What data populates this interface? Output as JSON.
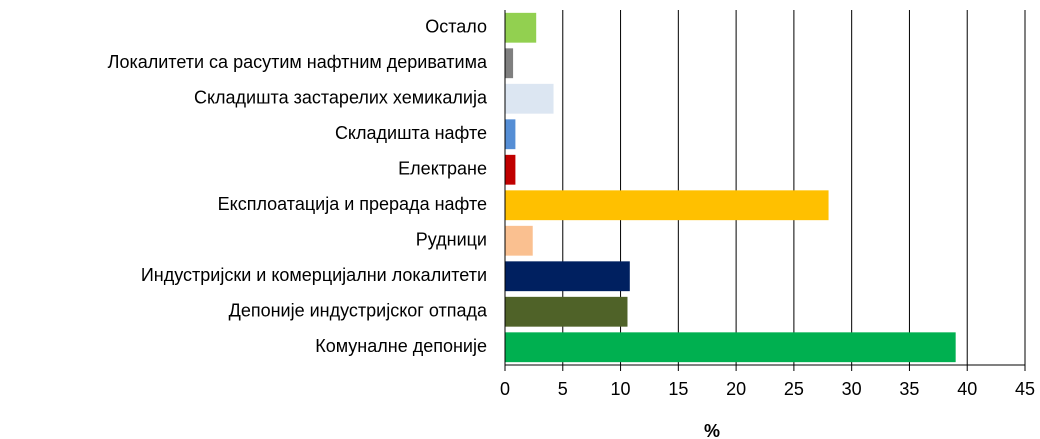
{
  "chart_data": {
    "type": "bar",
    "orientation": "horizontal",
    "xlabel": "%",
    "categories": [
      "Остало",
      "Локалитети са расутим нафтним дериватима",
      "Складишта застарелих хемикалија",
      "Складишта нафте",
      "Електране",
      "Експлоатација и прерада нафте",
      "Рудници",
      "Индустријски и комерцијални локалитети",
      "Депоније индустријског отпада",
      "Комуналне депоније"
    ],
    "values": [
      2.7,
      0.7,
      4.2,
      0.9,
      0.9,
      28,
      2.4,
      10.8,
      10.6,
      39
    ],
    "colors": [
      "#92d050",
      "#7f7f7f",
      "#dce6f2",
      "#558ed5",
      "#c00000",
      "#ffc000",
      "#fac090",
      "#002060",
      "#4f6228",
      "#00b050"
    ],
    "xlim": [
      0,
      45
    ],
    "xticks": [
      0,
      5,
      10,
      15,
      20,
      25,
      30,
      35,
      40,
      45
    ],
    "grid": true
  }
}
